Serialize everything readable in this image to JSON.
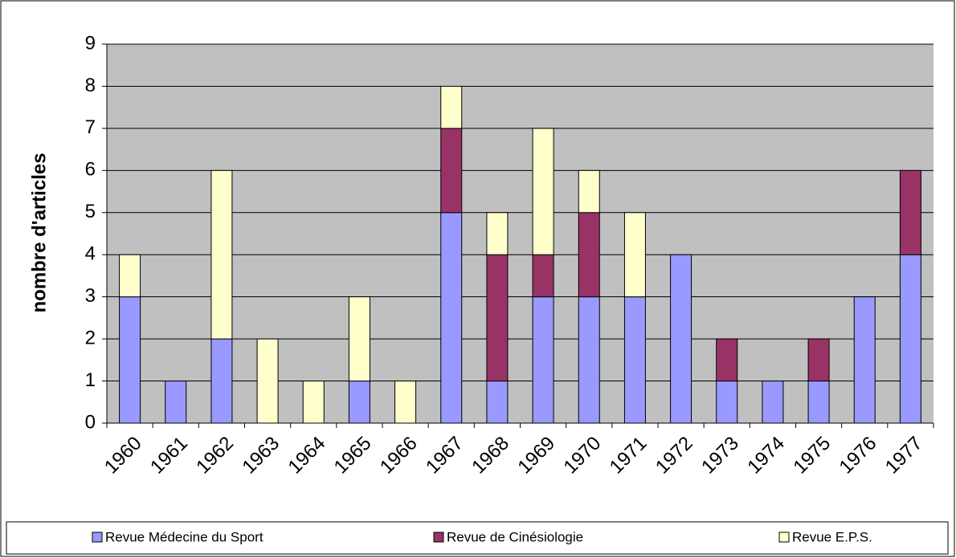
{
  "chart_data": {
    "type": "bar",
    "stacked": true,
    "y_label": "nombre d'articles",
    "categories": [
      "1960",
      "1961",
      "1962",
      "1963",
      "1964",
      "1965",
      "1966",
      "1967",
      "1968",
      "1969",
      "1970",
      "1971",
      "1972",
      "1973",
      "1974",
      "1975",
      "1976",
      "1977"
    ],
    "series": [
      {
        "name": "Revue Médecine du Sport",
        "color": "#9999ff",
        "values": [
          3,
          1,
          2,
          0,
          0,
          1,
          0,
          5,
          1,
          3,
          3,
          3,
          4,
          1,
          1,
          1,
          3,
          4
        ]
      },
      {
        "name": "Revue de Cinésiologie",
        "color": "#993366",
        "values": [
          0,
          0,
          0,
          0,
          0,
          0,
          0,
          2,
          3,
          1,
          2,
          0,
          0,
          1,
          0,
          1,
          0,
          2
        ]
      },
      {
        "name": "Revue E.P.S.",
        "color": "#ffffcc",
        "values": [
          1,
          0,
          4,
          2,
          1,
          2,
          1,
          1,
          1,
          3,
          1,
          2,
          0,
          0,
          0,
          0,
          0,
          0
        ]
      }
    ],
    "ylim": [
      0,
      9
    ],
    "yticks": [
      0,
      1,
      2,
      3,
      4,
      5,
      6,
      7,
      8,
      9
    ],
    "grid": true,
    "legend": "bottom"
  }
}
